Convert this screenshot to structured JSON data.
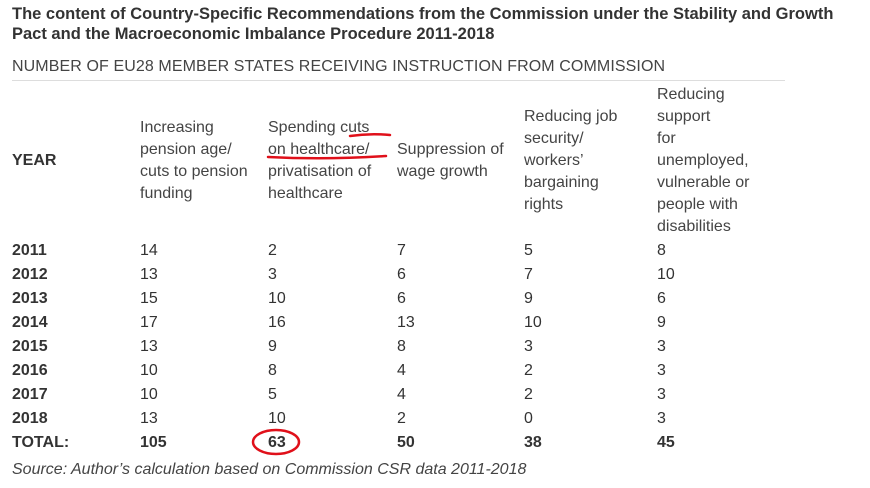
{
  "title": "The content of Country-Specific Recommendations from the Commission under the Stability and Growth Pact and the Macroeconomic Imbalance Procedure 2011-2018",
  "subtitle": "NUMBER OF EU28 MEMBER STATES RECEIVING INSTRUCTION FROM COMMISSION",
  "headers": {
    "year": "YEAR",
    "col1": [
      "Increasing",
      "pension age/",
      "cuts to pension",
      "funding"
    ],
    "col2": [
      "Spending cuts",
      "on healthcare/",
      "privatisation of",
      "healthcare"
    ],
    "col3": [
      "Suppression of",
      "wage growth"
    ],
    "col4": [
      "Reducing job",
      "security/",
      "workers’",
      "bargaining",
      "rights"
    ],
    "col5": [
      "Reducing",
      "support",
      "for",
      "unemployed,",
      "vulnerable or",
      "people with",
      "disabilities"
    ]
  },
  "rows": [
    {
      "year": "2011",
      "v": [
        "14",
        "2",
        "7",
        "5",
        "8"
      ]
    },
    {
      "year": "2012",
      "v": [
        "13",
        "3",
        "6",
        "7",
        "10"
      ]
    },
    {
      "year": "2013",
      "v": [
        "15",
        "10",
        "6",
        "9",
        "6"
      ]
    },
    {
      "year": "2014",
      "v": [
        "17",
        "16",
        "13",
        "10",
        "9"
      ]
    },
    {
      "year": "2015",
      "v": [
        "13",
        "9",
        "8",
        "3",
        "3"
      ]
    },
    {
      "year": "2016",
      "v": [
        "10",
        "8",
        "4",
        "2",
        "3"
      ]
    },
    {
      "year": "2017",
      "v": [
        "10",
        "5",
        "4",
        "2",
        "3"
      ]
    },
    {
      "year": "2018",
      "v": [
        "13",
        "10",
        "2",
        "0",
        "3"
      ]
    }
  ],
  "total": {
    "label": "TOTAL:",
    "v": [
      "105",
      "63",
      "50",
      "38",
      "45"
    ]
  },
  "source": "Source: Author’s calculation based on Commission CSR data 2011-2018",
  "annotation_color": "#e0101a"
}
